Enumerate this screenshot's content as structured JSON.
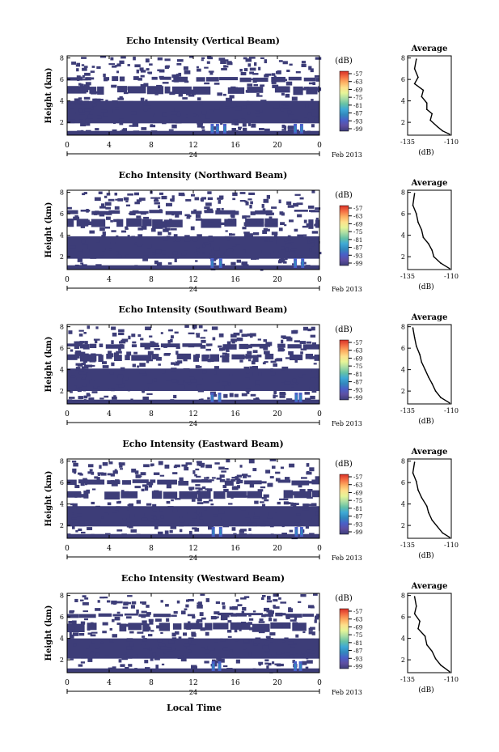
{
  "colorbar": {
    "unit_label": "(dB)",
    "ticks": [
      "-57",
      "-63",
      "-69",
      "-75",
      "-81",
      "-87",
      "-93",
      "-99"
    ],
    "colors": [
      "#d73027",
      "#f46d43",
      "#fdae61",
      "#fee08b",
      "#e6f598",
      "#abdda4",
      "#66c2a5",
      "#3fa9d6",
      "#3288bd",
      "#4a5fc8",
      "#5e4fa2",
      "#3d3d78"
    ]
  },
  "shared": {
    "date_label": "Feb 2013",
    "day_label": "24",
    "xlabel": "Local Time",
    "ylabel": "Height (km)",
    "x_ticks": [
      "0",
      "4",
      "8",
      "12",
      "16",
      "20",
      "0"
    ],
    "y_ticks": [
      "8",
      "6",
      "4",
      "2"
    ],
    "avg_title": "Average",
    "avg_xticks": [
      "-135",
      "-110"
    ],
    "avg_xlabel": "(dB)",
    "avg_yticks": [
      "8",
      "6",
      "4",
      "2"
    ]
  },
  "chart_data": [
    {
      "type": "heatmap",
      "title": "Echo Intensity (Vertical Beam)",
      "xlim": [
        0,
        24
      ],
      "ylim": [
        0.8,
        8.2
      ],
      "value_range_db": [
        -99,
        -57
      ],
      "fill_color": "#3d3d78",
      "bands_km": [
        [
          1.9,
          4.0
        ],
        [
          4.6,
          5.4
        ],
        [
          5.8,
          6.3
        ]
      ],
      "gaps_km": [
        [
          1.3,
          1.9
        ]
      ],
      "strong_echo_hours": [
        13.8,
        14.3,
        15.0,
        21.7,
        22.3
      ],
      "average_profile": {
        "type": "line",
        "xlim": [
          -135,
          -110
        ],
        "ylim": [
          0.8,
          8.2
        ],
        "points": [
          [
            -130,
            7.9
          ],
          [
            -131,
            7.0
          ],
          [
            -129,
            6.2
          ],
          [
            -131,
            5.6
          ],
          [
            -126,
            5.0
          ],
          [
            -127,
            4.4
          ],
          [
            -124,
            3.8
          ],
          [
            -124,
            3.2
          ],
          [
            -121,
            2.8
          ],
          [
            -122,
            2.2
          ],
          [
            -118,
            1.6
          ],
          [
            -115,
            1.2
          ],
          [
            -111,
            0.9
          ]
        ]
      }
    },
    {
      "type": "heatmap",
      "title": "Echo Intensity (Northward Beam)",
      "xlim": [
        0,
        24
      ],
      "ylim": [
        0.8,
        8.2
      ],
      "value_range_db": [
        -99,
        -57
      ],
      "fill_color": "#3d3d78",
      "bands_km": [
        [
          1.8,
          3.9
        ],
        [
          4.7,
          5.6
        ],
        [
          6.0,
          6.4
        ]
      ],
      "gaps_km": [
        [
          1.2,
          1.8
        ]
      ],
      "strong_echo_hours": [
        13.8,
        14.6,
        21.7,
        22.4
      ],
      "average_profile": {
        "type": "line",
        "xlim": [
          -135,
          -110
        ],
        "ylim": [
          0.8,
          8.2
        ],
        "points": [
          [
            -131,
            7.9
          ],
          [
            -132,
            6.8
          ],
          [
            -130,
            6.0
          ],
          [
            -129,
            5.2
          ],
          [
            -127,
            4.5
          ],
          [
            -126,
            3.8
          ],
          [
            -123,
            3.2
          ],
          [
            -121,
            2.6
          ],
          [
            -120,
            2.0
          ],
          [
            -116,
            1.4
          ],
          [
            -111,
            0.9
          ]
        ]
      }
    },
    {
      "type": "heatmap",
      "title": "Echo Intensity (Southward Beam)",
      "xlim": [
        0,
        24
      ],
      "ylim": [
        0.8,
        8.2
      ],
      "value_range_db": [
        -99,
        -57
      ],
      "fill_color": "#3d3d78",
      "bands_km": [
        [
          2.0,
          4.1
        ],
        [
          4.8,
          5.5
        ],
        [
          6.0,
          6.5
        ]
      ],
      "gaps_km": [
        [
          1.3,
          2.0
        ]
      ],
      "strong_echo_hours": [
        13.8,
        14.5,
        21.8,
        22.2
      ],
      "average_profile": {
        "type": "line",
        "xlim": [
          -135,
          -110
        ],
        "ylim": [
          0.8,
          8.2
        ],
        "points": [
          [
            -132,
            7.9
          ],
          [
            -131,
            7.0
          ],
          [
            -130,
            6.2
          ],
          [
            -128,
            5.4
          ],
          [
            -127,
            4.7
          ],
          [
            -125,
            4.0
          ],
          [
            -123,
            3.3
          ],
          [
            -121,
            2.7
          ],
          [
            -119,
            2.0
          ],
          [
            -116,
            1.4
          ],
          [
            -111,
            0.9
          ]
        ]
      }
    },
    {
      "type": "heatmap",
      "title": "Echo Intensity (Eastward Beam)",
      "xlim": [
        0,
        24
      ],
      "ylim": [
        0.8,
        8.2
      ],
      "value_range_db": [
        -99,
        -57
      ],
      "fill_color": "#3d3d78",
      "bands_km": [
        [
          1.9,
          3.8
        ],
        [
          4.5,
          5.3
        ],
        [
          5.8,
          6.3
        ]
      ],
      "gaps_km": [
        [
          1.2,
          1.9
        ]
      ],
      "strong_echo_hours": [
        13.9,
        14.6,
        21.8,
        22.3
      ],
      "average_profile": {
        "type": "line",
        "xlim": [
          -135,
          -110
        ],
        "ylim": [
          0.8,
          8.2
        ],
        "points": [
          [
            -131,
            7.9
          ],
          [
            -132,
            6.9
          ],
          [
            -130,
            6.1
          ],
          [
            -129,
            5.3
          ],
          [
            -127,
            4.6
          ],
          [
            -124,
            3.8
          ],
          [
            -123,
            3.2
          ],
          [
            -121,
            2.5
          ],
          [
            -118,
            1.9
          ],
          [
            -115,
            1.3
          ],
          [
            -111,
            0.9
          ]
        ]
      }
    },
    {
      "type": "heatmap",
      "title": "Echo Intensity (Westward Beam)",
      "xlim": [
        0,
        24
      ],
      "ylim": [
        0.8,
        8.2
      ],
      "value_range_db": [
        -99,
        -57
      ],
      "fill_color": "#3d3d78",
      "bands_km": [
        [
          2.1,
          4.0
        ],
        [
          4.7,
          5.5
        ],
        [
          6.0,
          6.4
        ]
      ],
      "gaps_km": [
        [
          1.4,
          2.1
        ]
      ],
      "strong_echo_hours": [
        13.9,
        14.5,
        21.7,
        22.2
      ],
      "average_profile": {
        "type": "line",
        "xlim": [
          -135,
          -110
        ],
        "ylim": [
          0.8,
          8.2
        ],
        "points": [
          [
            -131,
            7.9
          ],
          [
            -130,
            7.0
          ],
          [
            -131,
            6.3
          ],
          [
            -128,
            5.6
          ],
          [
            -129,
            4.9
          ],
          [
            -125,
            4.2
          ],
          [
            -124,
            3.4
          ],
          [
            -121,
            2.8
          ],
          [
            -119,
            2.1
          ],
          [
            -116,
            1.5
          ],
          [
            -111,
            0.9
          ]
        ]
      }
    }
  ]
}
